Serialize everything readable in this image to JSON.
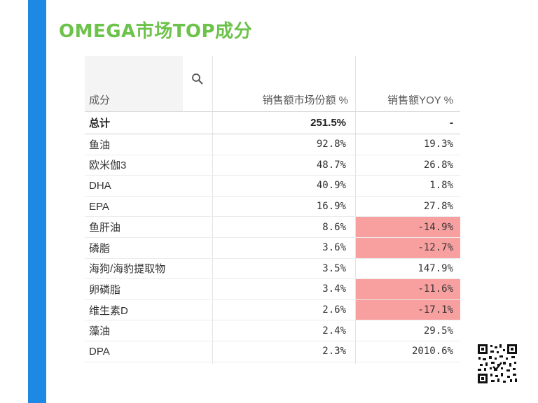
{
  "slide": {
    "title": "OMEGA市场TOP成分"
  },
  "table": {
    "headers": [
      "成分",
      "销售额市场份额 %",
      "销售额YOY %"
    ],
    "total": {
      "label": "总计",
      "share": "251.5%",
      "yoy": "-"
    },
    "rows": [
      {
        "label": "鱼油",
        "share": "92.8%",
        "yoy": "19.3%",
        "negative": false
      },
      {
        "label": "欧米伽3",
        "share": "48.7%",
        "yoy": "26.8%",
        "negative": false
      },
      {
        "label": "DHA",
        "share": "40.9%",
        "yoy": "1.8%",
        "negative": false
      },
      {
        "label": "EPA",
        "share": "16.9%",
        "yoy": "27.8%",
        "negative": false
      },
      {
        "label": "鱼肝油",
        "share": "8.6%",
        "yoy": "-14.9%",
        "negative": true
      },
      {
        "label": "磷脂",
        "share": "3.6%",
        "yoy": "-12.7%",
        "negative": true
      },
      {
        "label": "海狗/海豹提取物",
        "share": "3.5%",
        "yoy": "147.9%",
        "negative": false
      },
      {
        "label": "卵磷脂",
        "share": "3.4%",
        "yoy": "-11.6%",
        "negative": true
      },
      {
        "label": "维生素D",
        "share": "2.6%",
        "yoy": "-17.1%",
        "negative": true
      },
      {
        "label": "藻油",
        "share": "2.4%",
        "yoy": "29.5%",
        "negative": false
      },
      {
        "label": "DPA",
        "share": "2.3%",
        "yoy": "2010.6%",
        "negative": false
      }
    ]
  },
  "colors": {
    "accent_bar": "#1e88e5",
    "title": "#6cc24a",
    "negative_bg": "#f8a0a0"
  },
  "icons": {
    "search": "search-icon",
    "qr": "qr-code-icon"
  }
}
